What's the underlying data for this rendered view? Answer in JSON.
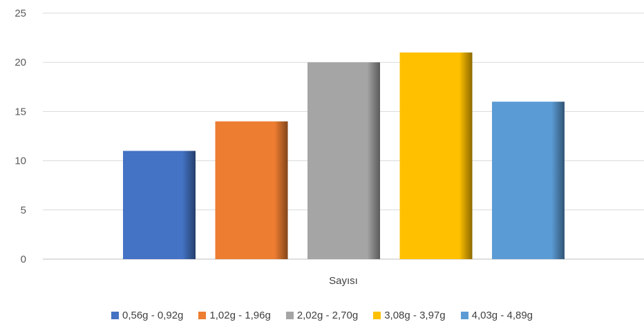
{
  "chart_data": {
    "type": "bar",
    "title": "",
    "xlabel": "",
    "ylabel": "",
    "categories": [
      "Sayısı"
    ],
    "series": [
      {
        "name": "0,56g - 0,92g",
        "values": [
          11
        ],
        "color": "#4472C4"
      },
      {
        "name": "1,02g - 1,96g",
        "values": [
          14
        ],
        "color": "#ED7D31"
      },
      {
        "name": "2,02g - 2,70g",
        "values": [
          20
        ],
        "color": "#A5A5A5"
      },
      {
        "name": "3,08g - 3,97g",
        "values": [
          21
        ],
        "color": "#FFC000"
      },
      {
        "name": "4,03g - 4,89g",
        "values": [
          16
        ],
        "color": "#5B9BD5"
      }
    ],
    "ylim": [
      0,
      25
    ],
    "yticks": [
      0,
      5,
      10,
      15,
      20,
      25
    ],
    "grid": true,
    "legend_position": "bottom"
  }
}
